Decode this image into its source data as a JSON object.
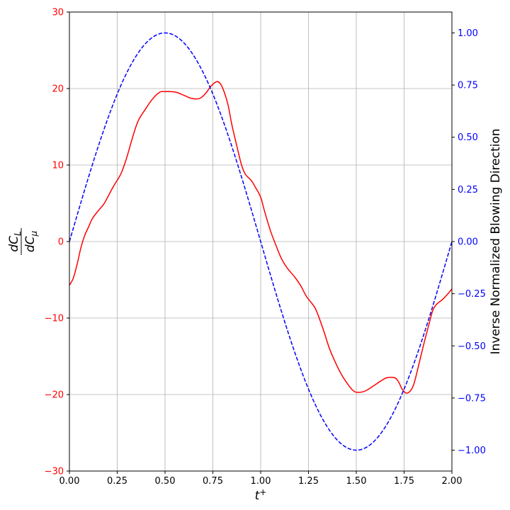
{
  "chart_data": {
    "type": "line",
    "title": "",
    "xlabel_base": "t",
    "xlabel_sup": "+",
    "ylabel_left": {
      "numerator": "dC",
      "numerator_sub": "L",
      "denominator": "dC",
      "denominator_sub": "μ"
    },
    "ylabel_right": "Inverse Normalized Blowing Direction",
    "xlim": [
      0.0,
      2.0
    ],
    "ylim_left": [
      -30,
      30
    ],
    "ylim_right": [
      -1.1,
      1.1
    ],
    "grid": true,
    "x_ticks": [
      "0.00",
      "0.25",
      "0.50",
      "0.75",
      "1.00",
      "1.25",
      "1.50",
      "1.75",
      "2.00"
    ],
    "y_left_ticks": [
      "30",
      "20",
      "10",
      "0",
      "−10",
      "−20",
      "−30"
    ],
    "y_right_ticks": [
      "1.00",
      "0.75",
      "0.50",
      "0.25",
      "0.00",
      "−0.25",
      "−0.50",
      "−0.75",
      "−1.00"
    ],
    "colors": {
      "left_series": "#ff0000",
      "right_series": "#0000ff",
      "left_axis": "#ff0000",
      "right_axis": "#0000ff",
      "grid": "#b0b0b0"
    },
    "series": [
      {
        "axis": "left",
        "style": "solid",
        "color": "#ff0000",
        "points": [
          [
            0.0,
            -5.7
          ],
          [
            0.02,
            -4.8
          ],
          [
            0.04,
            -3.0
          ],
          [
            0.06,
            -0.8
          ],
          [
            0.08,
            0.8
          ],
          [
            0.1,
            1.9
          ],
          [
            0.12,
            3.0
          ],
          [
            0.15,
            4.0
          ],
          [
            0.18,
            4.9
          ],
          [
            0.2,
            5.8
          ],
          [
            0.23,
            7.2
          ],
          [
            0.27,
            8.9
          ],
          [
            0.3,
            11.0
          ],
          [
            0.33,
            13.6
          ],
          [
            0.36,
            15.8
          ],
          [
            0.4,
            17.4
          ],
          [
            0.43,
            18.5
          ],
          [
            0.46,
            19.3
          ],
          [
            0.48,
            19.6
          ],
          [
            0.5,
            19.6
          ],
          [
            0.53,
            19.6
          ],
          [
            0.56,
            19.5
          ],
          [
            0.6,
            19.1
          ],
          [
            0.64,
            18.7
          ],
          [
            0.68,
            18.7
          ],
          [
            0.71,
            19.3
          ],
          [
            0.74,
            20.3
          ],
          [
            0.77,
            20.9
          ],
          [
            0.79,
            20.6
          ],
          [
            0.81,
            19.5
          ],
          [
            0.83,
            17.8
          ],
          [
            0.85,
            15.2
          ],
          [
            0.88,
            12.0
          ],
          [
            0.9,
            10.0
          ],
          [
            0.92,
            8.8
          ],
          [
            0.95,
            8.0
          ],
          [
            0.97,
            7.2
          ],
          [
            1.0,
            5.8
          ],
          [
            1.02,
            4.0
          ],
          [
            1.05,
            1.5
          ],
          [
            1.08,
            -0.5
          ],
          [
            1.11,
            -2.3
          ],
          [
            1.14,
            -3.5
          ],
          [
            1.18,
            -4.7
          ],
          [
            1.21,
            -5.8
          ],
          [
            1.24,
            -7.2
          ],
          [
            1.28,
            -8.5
          ],
          [
            1.3,
            -9.6
          ],
          [
            1.33,
            -11.7
          ],
          [
            1.36,
            -14.0
          ],
          [
            1.4,
            -16.3
          ],
          [
            1.43,
            -17.7
          ],
          [
            1.46,
            -18.8
          ],
          [
            1.48,
            -19.4
          ],
          [
            1.5,
            -19.7
          ],
          [
            1.54,
            -19.6
          ],
          [
            1.57,
            -19.2
          ],
          [
            1.6,
            -18.7
          ],
          [
            1.63,
            -18.2
          ],
          [
            1.66,
            -17.8
          ],
          [
            1.7,
            -17.8
          ],
          [
            1.72,
            -18.3
          ],
          [
            1.74,
            -19.3
          ],
          [
            1.76,
            -19.8
          ],
          [
            1.78,
            -19.6
          ],
          [
            1.8,
            -18.7
          ],
          [
            1.82,
            -16.8
          ],
          [
            1.85,
            -13.7
          ],
          [
            1.88,
            -10.8
          ],
          [
            1.9,
            -9.0
          ],
          [
            1.92,
            -8.2
          ],
          [
            1.95,
            -7.6
          ],
          [
            1.98,
            -6.8
          ],
          [
            2.0,
            -6.2
          ]
        ]
      },
      {
        "axis": "right",
        "style": "dashed",
        "color": "#0000ff",
        "function": "sin(pi*x)",
        "range": [
          0.0,
          2.0
        ]
      }
    ]
  }
}
